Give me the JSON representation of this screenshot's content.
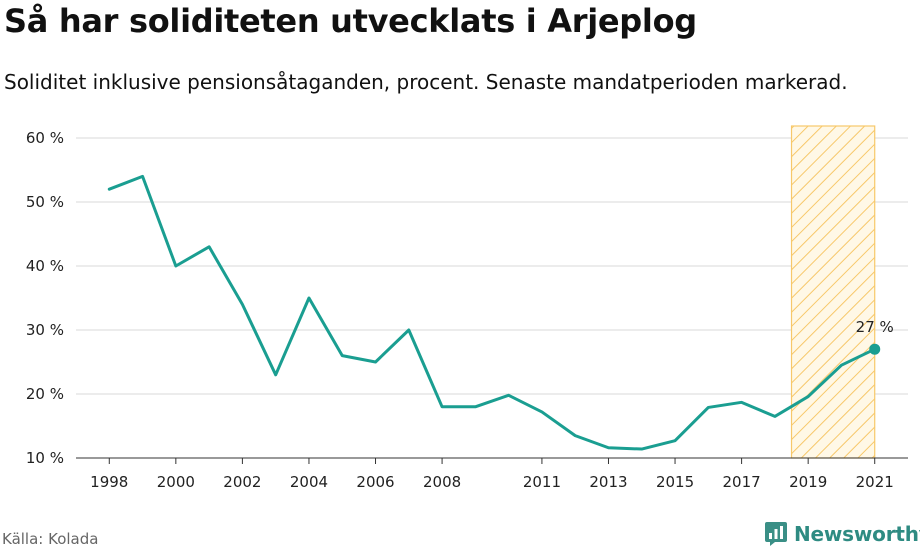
{
  "title": "Så har soliditeten utvecklats i Arjeplog",
  "subtitle": "Soliditet inklusive pensionsåtaganden, procent. Senaste mandatperioden markerad.",
  "source": "Källa: Kolada",
  "brand": "Newsworthy",
  "colors": {
    "line": "#1a9e91",
    "highlight": "#f7c86a",
    "grid": "#d9d9d9"
  },
  "chart_data": {
    "type": "line",
    "x": [
      1998,
      1999,
      2000,
      2001,
      2002,
      2003,
      2004,
      2005,
      2006,
      2007,
      2008,
      2009,
      2010,
      2011,
      2012,
      2013,
      2014,
      2015,
      2016,
      2017,
      2018,
      2019,
      2020,
      2021
    ],
    "series": [
      {
        "values": [
          52,
          54,
          40,
          43,
          34,
          23,
          35,
          26,
          25,
          30,
          18,
          18,
          19.8,
          17.2,
          13.5,
          11.6,
          11.4,
          12.7,
          17.9,
          18.7,
          16.5,
          19.6,
          24.5,
          27
        ]
      }
    ],
    "ylim": [
      10,
      60
    ],
    "yticks": [
      10,
      20,
      30,
      40,
      50,
      60
    ],
    "ytick_labels": [
      "10 %",
      "20 %",
      "30 %",
      "40 %",
      "50 %",
      "60 %"
    ],
    "xticks": [
      1998,
      2000,
      2002,
      2004,
      2006,
      2008,
      2011,
      2013,
      2015,
      2017,
      2019,
      2021
    ],
    "xtick_labels": [
      "1998",
      "2000",
      "2002",
      "2004",
      "2006",
      "2008",
      "2011",
      "2013",
      "2015",
      "2017",
      "2019",
      "2021"
    ],
    "xlim": [
      1997,
      2022
    ],
    "highlight_range": [
      2018.5,
      2021
    ],
    "end_label": "27 %",
    "grid": true
  }
}
